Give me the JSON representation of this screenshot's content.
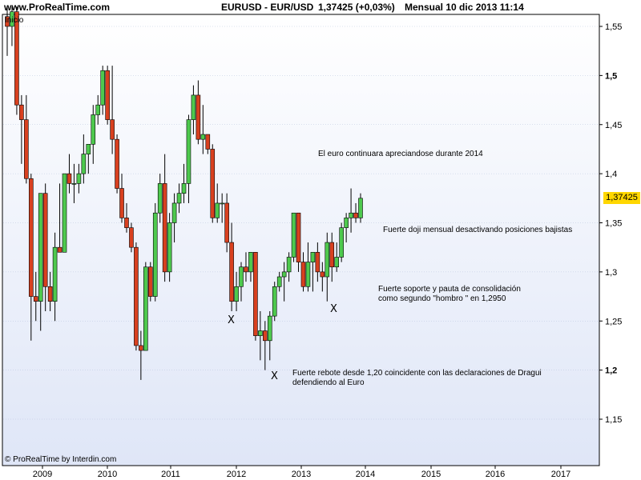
{
  "header": {
    "site": "www.ProRealTime.com",
    "symbol": "EURUSD - EUR/USD",
    "price": "1,37425 (+0,03%)",
    "period": "Mensual  10 dic 2013 11:14"
  },
  "start_label": "Inicio",
  "footer": "© ProRealTime by Interdin.com",
  "last_price_label": "1,37425",
  "colors": {
    "up": "#4ec94e",
    "down": "#d8401f",
    "bg_top": "#ffffff",
    "bg_bottom": "#dfe6f7",
    "grid": "#b8c4dd",
    "wick": "#000000"
  },
  "annotations": [
    {
      "text": "El euro continuara apreciandose durante 2014"
    },
    {
      "text": "Fuerte doji mensual desactivando posiciones bajistas"
    },
    {
      "text": "Fuerte soporte y pauta de consolidación"
    },
    {
      "text": "como segundo \"hombro \" en 1,2950"
    },
    {
      "text": "Fuerte rebote desde 1,20 coincidente con las declaraciones de Dragui"
    },
    {
      "text": "defendiendo al Euro"
    }
  ],
  "markers": [
    "X",
    "X",
    "X"
  ],
  "chart_data": {
    "type": "candlestick",
    "y_ticks": [
      "1,55",
      "1,5",
      "1,45",
      "1,4",
      "1,35",
      "1,3",
      "1,25",
      "1,2",
      "1,15"
    ],
    "y_tick_values": [
      1.55,
      1.5,
      1.45,
      1.4,
      1.35,
      1.3,
      1.25,
      1.2,
      1.15
    ],
    "x_ticks": [
      "2009",
      "2010",
      "2011",
      "2012",
      "2013",
      "2014",
      "2015",
      "2016",
      "2017"
    ],
    "ylim": [
      1.1,
      1.57
    ],
    "last_price": 1.37425,
    "candles": [
      {
        "date": "2008-08",
        "o": 1.56,
        "h": 1.57,
        "l": 1.52,
        "c": 1.55
      },
      {
        "date": "2008-09",
        "o": 1.55,
        "h": 1.57,
        "l": 1.53,
        "c": 1.565
      },
      {
        "date": "2008-10",
        "o": 1.565,
        "h": 1.57,
        "l": 1.46,
        "c": 1.47
      },
      {
        "date": "2008-11",
        "o": 1.47,
        "h": 1.48,
        "l": 1.41,
        "c": 1.455
      },
      {
        "date": "2008-12",
        "o": 1.455,
        "h": 1.48,
        "l": 1.39,
        "c": 1.395
      },
      {
        "date": "2009-01",
        "o": 1.395,
        "h": 1.4,
        "l": 1.23,
        "c": 1.275
      },
      {
        "date": "2009-02",
        "o": 1.275,
        "h": 1.3,
        "l": 1.25,
        "c": 1.27
      },
      {
        "date": "2009-03",
        "o": 1.27,
        "h": 1.38,
        "l": 1.24,
        "c": 1.38
      },
      {
        "date": "2009-04",
        "o": 1.38,
        "h": 1.39,
        "l": 1.26,
        "c": 1.285
      },
      {
        "date": "2009-05",
        "o": 1.285,
        "h": 1.3,
        "l": 1.26,
        "c": 1.27
      },
      {
        "date": "2009-06",
        "o": 1.27,
        "h": 1.34,
        "l": 1.25,
        "c": 1.325
      },
      {
        "date": "2009-07",
        "o": 1.325,
        "h": 1.39,
        "l": 1.32,
        "c": 1.32
      },
      {
        "date": "2009-08",
        "o": 1.32,
        "h": 1.4,
        "l": 1.32,
        "c": 1.4
      },
      {
        "date": "2009-09",
        "o": 1.4,
        "h": 1.42,
        "l": 1.38,
        "c": 1.39
      },
      {
        "date": "2009-10",
        "o": 1.39,
        "h": 1.41,
        "l": 1.37,
        "c": 1.39
      },
      {
        "date": "2009-11",
        "o": 1.39,
        "h": 1.41,
        "l": 1.38,
        "c": 1.4
      },
      {
        "date": "2009-12",
        "o": 1.4,
        "h": 1.44,
        "l": 1.39,
        "c": 1.42
      },
      {
        "date": "2010-01",
        "o": 1.42,
        "h": 1.43,
        "l": 1.4,
        "c": 1.43
      },
      {
        "date": "2010-02",
        "o": 1.43,
        "h": 1.47,
        "l": 1.41,
        "c": 1.46
      },
      {
        "date": "2010-03",
        "o": 1.46,
        "h": 1.48,
        "l": 1.45,
        "c": 1.47
      },
      {
        "date": "2010-04",
        "o": 1.47,
        "h": 1.51,
        "l": 1.46,
        "c": 1.505
      },
      {
        "date": "2010-05",
        "o": 1.505,
        "h": 1.51,
        "l": 1.45,
        "c": 1.455
      },
      {
        "date": "2010-06",
        "o": 1.455,
        "h": 1.51,
        "l": 1.42,
        "c": 1.435
      },
      {
        "date": "2010-07",
        "o": 1.435,
        "h": 1.44,
        "l": 1.38,
        "c": 1.385
      },
      {
        "date": "2010-08",
        "o": 1.385,
        "h": 1.4,
        "l": 1.35,
        "c": 1.355
      },
      {
        "date": "2010-09",
        "o": 1.355,
        "h": 1.37,
        "l": 1.34,
        "c": 1.345
      },
      {
        "date": "2010-10",
        "o": 1.345,
        "h": 1.35,
        "l": 1.32,
        "c": 1.325
      },
      {
        "date": "2010-11",
        "o": 1.325,
        "h": 1.33,
        "l": 1.22,
        "c": 1.225
      },
      {
        "date": "2010-12",
        "o": 1.225,
        "h": 1.24,
        "l": 1.19,
        "c": 1.22
      },
      {
        "date": "2011-01",
        "o": 1.22,
        "h": 1.31,
        "l": 1.22,
        "c": 1.305
      },
      {
        "date": "2011-02",
        "o": 1.305,
        "h": 1.31,
        "l": 1.27,
        "c": 1.275
      },
      {
        "date": "2011-03",
        "o": 1.275,
        "h": 1.37,
        "l": 1.27,
        "c": 1.36
      },
      {
        "date": "2011-04",
        "o": 1.36,
        "h": 1.4,
        "l": 1.35,
        "c": 1.39
      },
      {
        "date": "2011-05",
        "o": 1.39,
        "h": 1.42,
        "l": 1.29,
        "c": 1.3
      },
      {
        "date": "2011-06",
        "o": 1.3,
        "h": 1.36,
        "l": 1.29,
        "c": 1.35
      },
      {
        "date": "2011-07",
        "o": 1.35,
        "h": 1.38,
        "l": 1.33,
        "c": 1.37
      },
      {
        "date": "2011-08",
        "o": 1.37,
        "h": 1.39,
        "l": 1.36,
        "c": 1.38
      },
      {
        "date": "2011-09",
        "o": 1.38,
        "h": 1.41,
        "l": 1.37,
        "c": 1.39
      },
      {
        "date": "2011-10",
        "o": 1.39,
        "h": 1.46,
        "l": 1.37,
        "c": 1.455
      },
      {
        "date": "2011-11",
        "o": 1.455,
        "h": 1.49,
        "l": 1.44,
        "c": 1.48
      },
      {
        "date": "2011-12",
        "o": 1.48,
        "h": 1.495,
        "l": 1.43,
        "c": 1.435
      },
      {
        "date": "2012-01",
        "o": 1.435,
        "h": 1.47,
        "l": 1.42,
        "c": 1.44
      },
      {
        "date": "2012-02",
        "o": 1.44,
        "h": 1.44,
        "l": 1.42,
        "c": 1.425
      },
      {
        "date": "2012-03",
        "o": 1.425,
        "h": 1.43,
        "l": 1.35,
        "c": 1.355
      },
      {
        "date": "2012-04",
        "o": 1.355,
        "h": 1.39,
        "l": 1.35,
        "c": 1.37
      },
      {
        "date": "2012-05",
        "o": 1.37,
        "h": 1.38,
        "l": 1.35,
        "c": 1.37
      },
      {
        "date": "2012-06",
        "o": 1.37,
        "h": 1.38,
        "l": 1.32,
        "c": 1.33
      },
      {
        "date": "2012-07",
        "o": 1.33,
        "h": 1.35,
        "l": 1.26,
        "c": 1.27
      },
      {
        "date": "2012-08",
        "o": 1.27,
        "h": 1.3,
        "l": 1.26,
        "c": 1.285
      },
      {
        "date": "2012-09",
        "o": 1.285,
        "h": 1.31,
        "l": 1.27,
        "c": 1.305
      },
      {
        "date": "2012-10",
        "o": 1.305,
        "h": 1.32,
        "l": 1.29,
        "c": 1.3
      },
      {
        "date": "2012-11",
        "o": 1.3,
        "h": 1.32,
        "l": 1.29,
        "c": 1.32
      },
      {
        "date": "2012-12",
        "o": 1.32,
        "h": 1.32,
        "l": 1.23,
        "c": 1.235
      },
      {
        "date": "2013-01",
        "o": 1.235,
        "h": 1.26,
        "l": 1.21,
        "c": 1.24
      },
      {
        "date": "2013-02",
        "o": 1.24,
        "h": 1.25,
        "l": 1.2,
        "c": 1.23
      },
      {
        "date": "2013-03",
        "o": 1.23,
        "h": 1.26,
        "l": 1.21,
        "c": 1.255
      },
      {
        "date": "2013-04",
        "o": 1.255,
        "h": 1.29,
        "l": 1.25,
        "c": 1.285
      },
      {
        "date": "2013-05",
        "o": 1.285,
        "h": 1.3,
        "l": 1.28,
        "c": 1.295
      },
      {
        "date": "2013-06",
        "o": 1.295,
        "h": 1.31,
        "l": 1.27,
        "c": 1.3
      },
      {
        "date": "2013-07",
        "o": 1.3,
        "h": 1.32,
        "l": 1.29,
        "c": 1.315
      },
      {
        "date": "2013-08",
        "o": 1.315,
        "h": 1.36,
        "l": 1.31,
        "c": 1.36
      },
      {
        "date": "2013-09",
        "o": 1.36,
        "h": 1.36,
        "l": 1.3,
        "c": 1.31
      },
      {
        "date": "2013-10",
        "o": 1.31,
        "h": 1.32,
        "l": 1.28,
        "c": 1.285
      },
      {
        "date": "2013-11",
        "o": 1.285,
        "h": 1.33,
        "l": 1.28,
        "c": 1.31
      },
      {
        "date": "2013-12",
        "o": 1.31,
        "h": 1.32,
        "l": 1.28,
        "c": 1.32
      },
      {
        "date": "2014-01",
        "o": 1.32,
        "h": 1.33,
        "l": 1.29,
        "c": 1.3
      },
      {
        "date": "2014-02",
        "o": 1.3,
        "h": 1.31,
        "l": 1.28,
        "c": 1.295
      },
      {
        "date": "2014-03",
        "o": 1.295,
        "h": 1.34,
        "l": 1.27,
        "c": 1.33
      },
      {
        "date": "2014-04",
        "o": 1.33,
        "h": 1.34,
        "l": 1.29,
        "c": 1.305
      },
      {
        "date": "2014-05",
        "o": 1.305,
        "h": 1.33,
        "l": 1.3,
        "c": 1.315
      },
      {
        "date": "2014-06",
        "o": 1.315,
        "h": 1.35,
        "l": 1.31,
        "c": 1.345
      },
      {
        "date": "2014-07",
        "o": 1.345,
        "h": 1.36,
        "l": 1.33,
        "c": 1.355
      },
      {
        "date": "2014-08",
        "o": 1.355,
        "h": 1.385,
        "l": 1.34,
        "c": 1.36
      },
      {
        "date": "2014-09",
        "o": 1.36,
        "h": 1.37,
        "l": 1.35,
        "c": 1.355
      },
      {
        "date": "2014-10",
        "o": 1.355,
        "h": 1.38,
        "l": 1.35,
        "c": 1.375
      }
    ]
  }
}
